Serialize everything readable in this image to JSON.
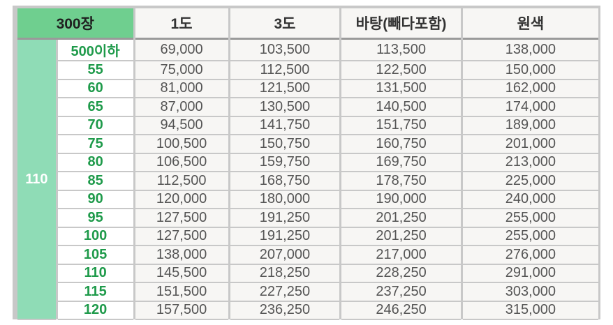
{
  "header": {
    "quantity": "300장",
    "col1": "1도",
    "col3": "3도",
    "colBg": "바탕(빼다포함)",
    "colFull": "원색"
  },
  "size_label": "110",
  "rows": [
    {
      "qty": "500이하",
      "p1": "69,000",
      "p3": "103,500",
      "pb": "113,500",
      "pf": "138,000"
    },
    {
      "qty": "55",
      "p1": "75,000",
      "p3": "112,500",
      "pb": "122,500",
      "pf": "150,000"
    },
    {
      "qty": "60",
      "p1": "81,000",
      "p3": "121,500",
      "pb": "131,500",
      "pf": "162,000"
    },
    {
      "qty": "65",
      "p1": "87,000",
      "p3": "130,500",
      "pb": "140,500",
      "pf": "174,000"
    },
    {
      "qty": "70",
      "p1": "94,500",
      "p3": "141,750",
      "pb": "151,750",
      "pf": "189,000"
    },
    {
      "qty": "75",
      "p1": "100,500",
      "p3": "150,750",
      "pb": "160,750",
      "pf": "201,000"
    },
    {
      "qty": "80",
      "p1": "106,500",
      "p3": "159,750",
      "pb": "169,750",
      "pf": "213,000"
    },
    {
      "qty": "85",
      "p1": "112,500",
      "p3": "168,750",
      "pb": "178,750",
      "pf": "225,000"
    },
    {
      "qty": "90",
      "p1": "120,000",
      "p3": "180,000",
      "pb": "190,000",
      "pf": "240,000"
    },
    {
      "qty": "95",
      "p1": "127,500",
      "p3": "191,250",
      "pb": "201,250",
      "pf": "255,000"
    },
    {
      "qty": "100",
      "p1": "127,500",
      "p3": "191,250",
      "pb": "201,250",
      "pf": "255,000"
    },
    {
      "qty": "105",
      "p1": "138,000",
      "p3": "207,000",
      "pb": "217,000",
      "pf": "276,000"
    },
    {
      "qty": "110",
      "p1": "145,500",
      "p3": "218,250",
      "pb": "228,250",
      "pf": "291,000"
    },
    {
      "qty": "115",
      "p1": "151,500",
      "p3": "227,250",
      "pb": "237,250",
      "pf": "303,000"
    },
    {
      "qty": "120",
      "p1": "157,500",
      "p3": "236,250",
      "pb": "246,250",
      "pf": "315,000"
    }
  ],
  "colors": {
    "header_accent": "#6fcf8f",
    "size_cell": "#8fdcb6",
    "quantity_text": "#1e9a4a",
    "price_text": "#555555"
  }
}
